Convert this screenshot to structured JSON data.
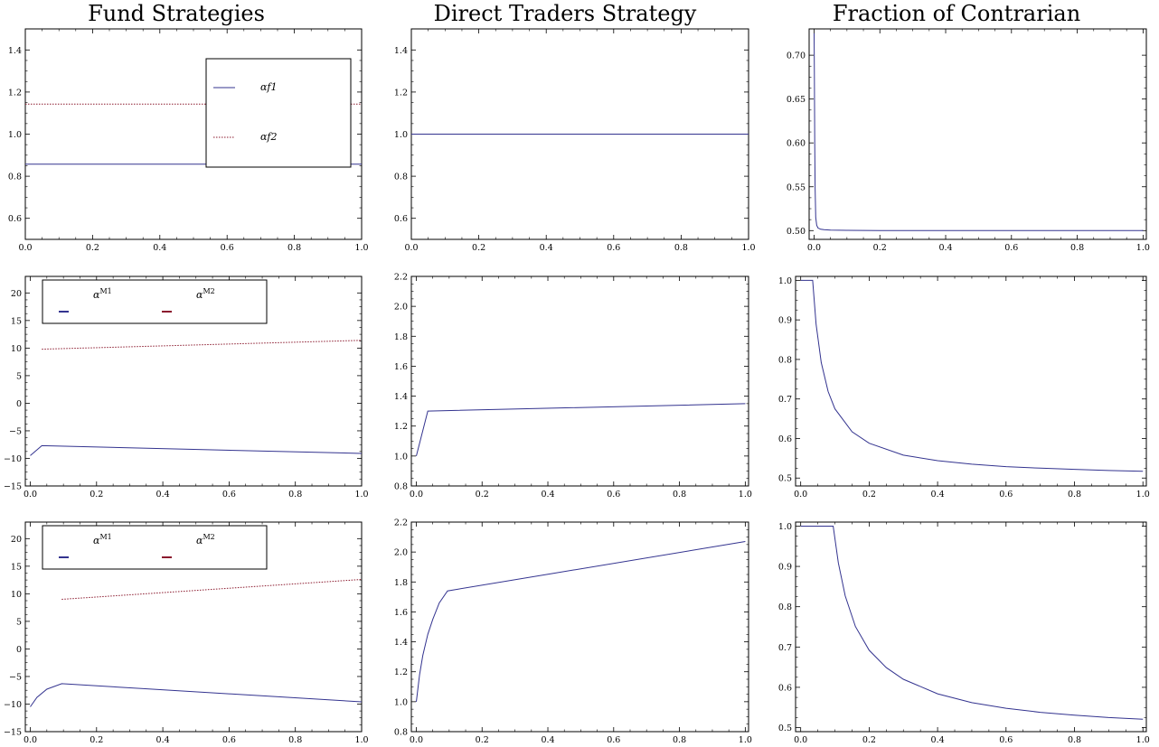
{
  "column_titles": [
    "Fund Strategies",
    "Direct Traders Strategy",
    "Fraction of Contrarian"
  ],
  "colors": {
    "series1": "#33338f",
    "series2": "#8b1a2e",
    "axis": "#000000"
  },
  "chart_data": [
    {
      "type": "line",
      "title": "Fund Strategies",
      "xlim": [
        0,
        1
      ],
      "ylim": [
        0.5,
        1.5
      ],
      "xticks": [
        "0.0",
        "0.2",
        "0.4",
        "0.6",
        "0.8",
        "1.0"
      ],
      "yticks": [
        "0.6",
        "0.8",
        "1.0",
        "1.2",
        "1.4"
      ],
      "legend": {
        "placement": "top-right",
        "style": "vertical",
        "entries": [
          {
            "label": "αf1"
          },
          {
            "label": "αf2"
          }
        ]
      },
      "series": [
        {
          "name": "αf1",
          "style": "solid",
          "x": [
            0,
            1
          ],
          "y": [
            0.857,
            0.857
          ]
        },
        {
          "name": "αf2",
          "style": "dotted",
          "x": [
            0,
            1
          ],
          "y": [
            1.143,
            1.143
          ]
        }
      ]
    },
    {
      "type": "line",
      "title": "Direct Traders Strategy",
      "xlim": [
        0,
        1
      ],
      "ylim": [
        0.5,
        1.5
      ],
      "xticks": [
        "0.0",
        "0.2",
        "0.4",
        "0.6",
        "0.8",
        "1.0"
      ],
      "yticks": [
        "0.6",
        "0.8",
        "1.0",
        "1.2",
        "1.4"
      ],
      "series": [
        {
          "style": "solid",
          "x": [
            0,
            1
          ],
          "y": [
            1.0,
            1.0
          ]
        }
      ]
    },
    {
      "type": "line",
      "title": "Fraction of Contrarian",
      "xlim": [
        -0.015,
        1.01
      ],
      "ylim": [
        0.49,
        0.73
      ],
      "xticks": [
        "0.0",
        "0.2",
        "0.4",
        "0.6",
        "0.8",
        "1.0"
      ],
      "yticks": [
        "0.50",
        "0.55",
        "0.60",
        "0.65",
        "0.70"
      ],
      "series": [
        {
          "style": "solid",
          "x": [
            0.0,
            0.001,
            0.002,
            0.003,
            0.005,
            0.008,
            0.012,
            0.02,
            0.03,
            0.05,
            0.1,
            0.2,
            0.5,
            1.0
          ],
          "y": [
            0.725,
            0.68,
            0.6,
            0.55,
            0.515,
            0.506,
            0.503,
            0.5015,
            0.501,
            0.5005,
            0.5003,
            0.5001,
            0.5,
            0.5
          ]
        }
      ]
    },
    {
      "type": "line",
      "xlim": [
        -0.015,
        1.0
      ],
      "ylim": [
        -15,
        23
      ],
      "xticks": [
        "0.0",
        "0.2",
        "0.4",
        "0.6",
        "0.8",
        "1.0"
      ],
      "yticks": [
        "−15",
        "−10",
        "−5",
        "0",
        "5",
        "10",
        "15",
        "20"
      ],
      "legend": {
        "placement": "top-left",
        "style": "horizontal",
        "entries": [
          {
            "label": "α",
            "sup": "M1"
          },
          {
            "label": "α",
            "sup": "M2"
          }
        ]
      },
      "series": [
        {
          "name": "αM1",
          "style": "solid",
          "x": [
            0.0,
            0.035,
            1.0
          ],
          "y": [
            -9.5,
            -7.7,
            -9.1
          ]
        },
        {
          "name": "αM2",
          "style": "dotted",
          "x": [
            0.035,
            1.0
          ],
          "y": [
            9.8,
            11.4
          ]
        }
      ]
    },
    {
      "type": "line",
      "xlim": [
        -0.015,
        1.01
      ],
      "ylim": [
        0.8,
        2.2
      ],
      "xticks": [
        "0.0",
        "0.2",
        "0.4",
        "0.6",
        "0.8",
        "1.0"
      ],
      "yticks": [
        "0.8",
        "1.0",
        "1.2",
        "1.4",
        "1.6",
        "1.8",
        "2.0",
        "2.2"
      ],
      "series": [
        {
          "style": "solid",
          "x": [
            0.0,
            0.035,
            1.0
          ],
          "y": [
            1.0,
            1.3,
            1.35
          ]
        }
      ]
    },
    {
      "type": "line",
      "xlim": [
        -0.015,
        1.01
      ],
      "ylim": [
        0.48,
        1.01
      ],
      "xticks": [
        "0.0",
        "0.2",
        "0.4",
        "0.6",
        "0.8",
        "1.0"
      ],
      "yticks": [
        "0.5",
        "0.6",
        "0.7",
        "0.8",
        "0.9",
        "1.0"
      ],
      "series": [
        {
          "style": "solid",
          "x": [
            0.0,
            0.035,
            0.045,
            0.06,
            0.08,
            0.1,
            0.15,
            0.2,
            0.3,
            0.4,
            0.5,
            0.6,
            0.7,
            0.8,
            0.9,
            1.0
          ],
          "y": [
            1.0,
            1.0,
            0.889,
            0.792,
            0.719,
            0.675,
            0.617,
            0.588,
            0.558,
            0.544,
            0.535,
            0.529,
            0.525,
            0.522,
            0.519,
            0.517
          ]
        }
      ]
    },
    {
      "type": "line",
      "xlim": [
        -0.015,
        1.0
      ],
      "ylim": [
        -15,
        23
      ],
      "xticks": [
        "0.0",
        "0.2",
        "0.4",
        "0.6",
        "0.8",
        "1.0"
      ],
      "yticks": [
        "−15",
        "−10",
        "−5",
        "0",
        "5",
        "10",
        "15",
        "20"
      ],
      "legend": {
        "placement": "top-left",
        "style": "horizontal",
        "entries": [
          {
            "label": "α",
            "sup": "M1"
          },
          {
            "label": "α",
            "sup": "M2"
          }
        ]
      },
      "series": [
        {
          "name": "αM1",
          "style": "solid",
          "x": [
            0.0,
            0.02,
            0.05,
            0.095,
            1.0
          ],
          "y": [
            -10.5,
            -8.8,
            -7.3,
            -6.3,
            -9.6
          ]
        },
        {
          "name": "αM2",
          "style": "dotted",
          "x": [
            0.095,
            1.0
          ],
          "y": [
            9.0,
            12.6
          ]
        }
      ]
    },
    {
      "type": "line",
      "xlim": [
        -0.015,
        1.01
      ],
      "ylim": [
        0.8,
        2.2
      ],
      "xticks": [
        "0.0",
        "0.2",
        "0.4",
        "0.6",
        "0.8",
        "1.0"
      ],
      "yticks": [
        "0.8",
        "1.0",
        "1.2",
        "1.4",
        "1.6",
        "1.8",
        "2.0",
        "2.2"
      ],
      "series": [
        {
          "style": "solid",
          "x": [
            0.0,
            0.01,
            0.02,
            0.035,
            0.05,
            0.07,
            0.095,
            1.0
          ],
          "y": [
            1.0,
            1.18,
            1.31,
            1.45,
            1.55,
            1.66,
            1.74,
            2.07
          ]
        }
      ]
    },
    {
      "type": "line",
      "xlim": [
        -0.015,
        1.01
      ],
      "ylim": [
        0.49,
        1.01
      ],
      "xticks": [
        "0.0",
        "0.2",
        "0.4",
        "0.6",
        "0.8",
        "1.0"
      ],
      "yticks": [
        "0.5",
        "0.6",
        "0.7",
        "0.8",
        "0.9",
        "1.0"
      ],
      "series": [
        {
          "style": "solid",
          "x": [
            0.0,
            0.095,
            0.11,
            0.13,
            0.16,
            0.2,
            0.25,
            0.3,
            0.4,
            0.5,
            0.6,
            0.7,
            0.8,
            0.9,
            1.0
          ],
          "y": [
            1.0,
            1.0,
            0.909,
            0.827,
            0.751,
            0.692,
            0.649,
            0.62,
            0.584,
            0.562,
            0.548,
            0.538,
            0.531,
            0.525,
            0.521
          ]
        }
      ]
    }
  ]
}
